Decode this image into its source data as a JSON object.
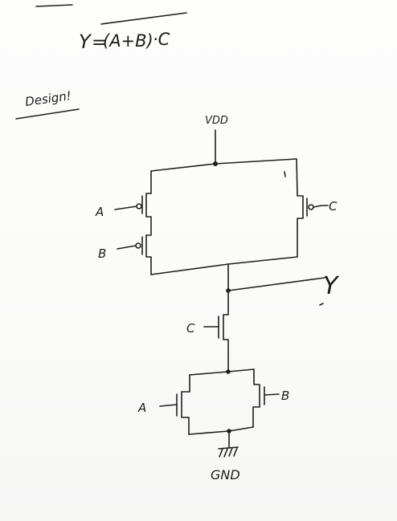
{
  "equation": {
    "lhs": "Y",
    "equals": "=",
    "overbar_term": "(A+B)",
    "rest": "·C"
  },
  "design_label": "Design!",
  "labels": {
    "vdd": "VDD",
    "gnd": "GND",
    "output": "Y",
    "pmos_a": "A",
    "pmos_b": "B",
    "pmos_c": "C",
    "nmos_c": "C",
    "nmos_a": "A",
    "nmos_b": "B"
  }
}
